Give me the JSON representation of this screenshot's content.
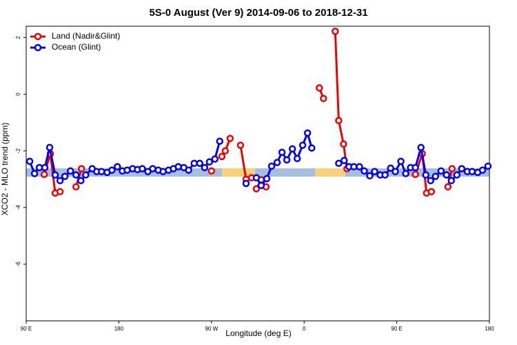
{
  "chart_data": {
    "type": "line",
    "title": "5S-0 August (Ver 9)   2014-09-06 to 2018-12-31",
    "x_label": "Longitude (deg E)",
    "y_label": "XCO2 - MLO trend (ppm)",
    "xlim": [
      90,
      540
    ],
    "ylim": [
      -8,
      2.4
    ],
    "xticks": [
      {
        "value": 90,
        "label": "90 E"
      },
      {
        "value": 180,
        "label": "180"
      },
      {
        "value": 270,
        "label": "90 W"
      },
      {
        "value": 360,
        "label": "0"
      },
      {
        "value": 450,
        "label": "90 E"
      },
      {
        "value": 540,
        "label": "180"
      }
    ],
    "yticks": [
      2,
      0,
      -2,
      -4,
      -6
    ],
    "legend": "top-left",
    "series": [
      {
        "name": "Land (Nadir&Glint)",
        "color": "#ee0000",
        "x": [
          107.5,
          113.5,
          118.2,
          122.9,
          null,
          138.4,
          143.7,
          null,
          270.0,
          null,
          280.1,
          283.4,
          288.1,
          null,
          298.2,
          303.6,
          308.9,
          null,
          313.6,
          318.3,
          323.0,
          null,
          374.8,
          378.8,
          null,
          390.2,
          393.6,
          398.3,
          401.6,
          null,
          468.1,
          474.8,
          478.9,
          483.6,
          null,
          499.7,
          503.7
        ],
        "values": [
          -2.83,
          -2.1,
          -3.49,
          -3.44,
          null,
          -3.27,
          -2.63,
          null,
          -2.71,
          null,
          -2.2,
          -2.0,
          -1.56,
          null,
          -1.8,
          -3.0,
          -2.95,
          null,
          -3.34,
          -3.02,
          -3.27,
          null,
          0.22,
          -0.15,
          null,
          2.22,
          -0.93,
          -1.76,
          -2.63,
          null,
          -2.83,
          -2.1,
          -3.49,
          -3.44,
          null,
          -3.27,
          -2.63
        ]
      },
      {
        "name": "Ocean (Glint)",
        "color": "#0000ee",
        "x": [
          93.4,
          98.1,
          102.8,
          108.1,
          112.8,
          118.2,
          122.9,
          127.6,
          133.0,
          138.4,
          143.1,
          147.8,
          154.1,
          158.5,
          163.2,
          168.6,
          173.3,
          178.6,
          183.4,
          188.1,
          193.4,
          198.1,
          202.8,
          208.2,
          212.9,
          218.3,
          223.0,
          228.3,
          233.0,
          237.8,
          243.1,
          247.8,
          253.2,
          258.6,
          263.3,
          268.0,
          273.3,
          278.0,
          null,
          303.6,
          null,
          313.6,
          318.3,
          323.7,
          328.4,
          333.8,
          338.5,
          343.2,
          348.6,
          353.3,
          358.6,
          363.3,
          367.4,
          null,
          393.6,
          398.9,
          403.6,
          408.3,
          413.7,
          418.4,
          423.8,
          428.5,
          433.9,
          438.6,
          444.0,
          448.6,
          454.0,
          458.7,
          463.4,
          468.1,
          473.5,
          478.2,
          482.9,
          487.6,
          493.0,
          498.3,
          503.0,
          508.4,
          513.1,
          518.5,
          523.2,
          528.6,
          533.3,
          538.6
        ],
        "values": [
          -2.37,
          -2.8,
          -2.59,
          -2.59,
          -1.88,
          -2.85,
          -3.05,
          -2.9,
          -2.71,
          -2.85,
          -3.05,
          -2.85,
          -2.63,
          -2.73,
          -2.73,
          -2.76,
          -2.68,
          -2.56,
          -2.71,
          -2.68,
          -2.63,
          -2.66,
          -2.63,
          -2.73,
          -2.63,
          -2.68,
          -2.73,
          -2.68,
          -2.63,
          -2.56,
          -2.59,
          -2.68,
          -2.44,
          -2.44,
          -2.59,
          -2.39,
          -2.29,
          -1.66,
          null,
          -3.15,
          null,
          -2.95,
          -3.22,
          -2.98,
          -2.54,
          -2.41,
          -2.05,
          -2.32,
          -1.93,
          -2.27,
          -1.8,
          -1.37,
          -1.9,
          null,
          -2.44,
          -2.34,
          -2.56,
          -2.56,
          -2.56,
          -2.71,
          -2.88,
          -2.73,
          -2.85,
          -2.85,
          -2.61,
          -2.73,
          -2.37,
          -2.8,
          -2.59,
          -2.59,
          -1.88,
          -2.85,
          -3.05,
          -2.9,
          -2.71,
          -2.85,
          -3.05,
          -2.85,
          -2.63,
          -2.73,
          -2.73,
          -2.76,
          -2.68,
          -2.54
        ]
      }
    ]
  }
}
